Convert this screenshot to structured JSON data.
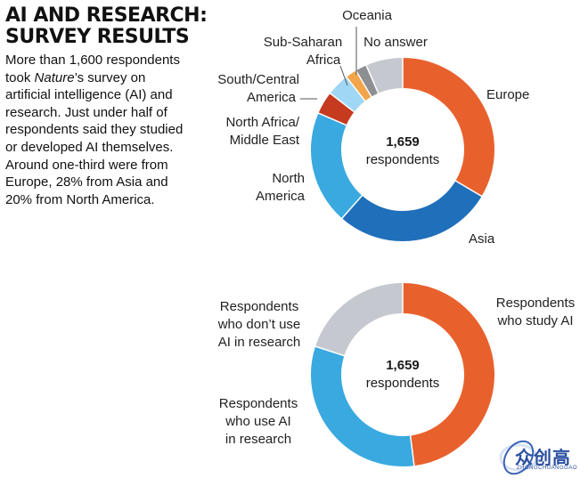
{
  "header": {
    "title_line1": "AI AND RESEARCH:",
    "title_line2": "SURVEY RESULTS",
    "intro_pre": "More than 1,600 respondents took ",
    "intro_italic": "Nature",
    "intro_post": "’s survey on artificial intelligence (AI) and research. Just under half of respondents said they studied or developed AI themselves. Around one-third were from Europe, 28% from Asia and 20% from North America."
  },
  "colors": {
    "europe": "#e8612c",
    "asia": "#1f6fba",
    "north_america": "#39a9e0",
    "north_africa_middle_east": "#c63a1f",
    "south_central_america": "#9fd7f4",
    "sub_saharan_africa": "#f2a54a",
    "oceania": "#8d8f93",
    "no_answer": "#c5c9cf",
    "study_ai": "#e8612c",
    "use_ai": "#39a9e0",
    "dont_use_ai": "#c5c9cf"
  },
  "chart_data": [
    {
      "type": "pie",
      "variant": "donut",
      "center_total": "1,659",
      "center_unit": "respondents",
      "categories": [
        "Europe",
        "Asia",
        "North America",
        "North Africa/ Middle East",
        "South/Central America",
        "Sub-Saharan Africa",
        "Oceania",
        "No answer"
      ],
      "values": [
        33.5,
        28,
        20,
        4,
        4,
        2,
        2,
        6.5
      ],
      "unit": "percent of respondents"
    },
    {
      "type": "pie",
      "variant": "donut",
      "center_total": "1,659",
      "center_unit": "respondents",
      "categories": [
        "Respondents who study AI",
        "Respondents who use AI in research",
        "Respondents who don’t use AI in research"
      ],
      "values": [
        48,
        32,
        20
      ],
      "unit": "percent of respondents"
    }
  ],
  "logo": {
    "main": "众创高",
    "sub": "ZHONGCHUANGGAO"
  }
}
